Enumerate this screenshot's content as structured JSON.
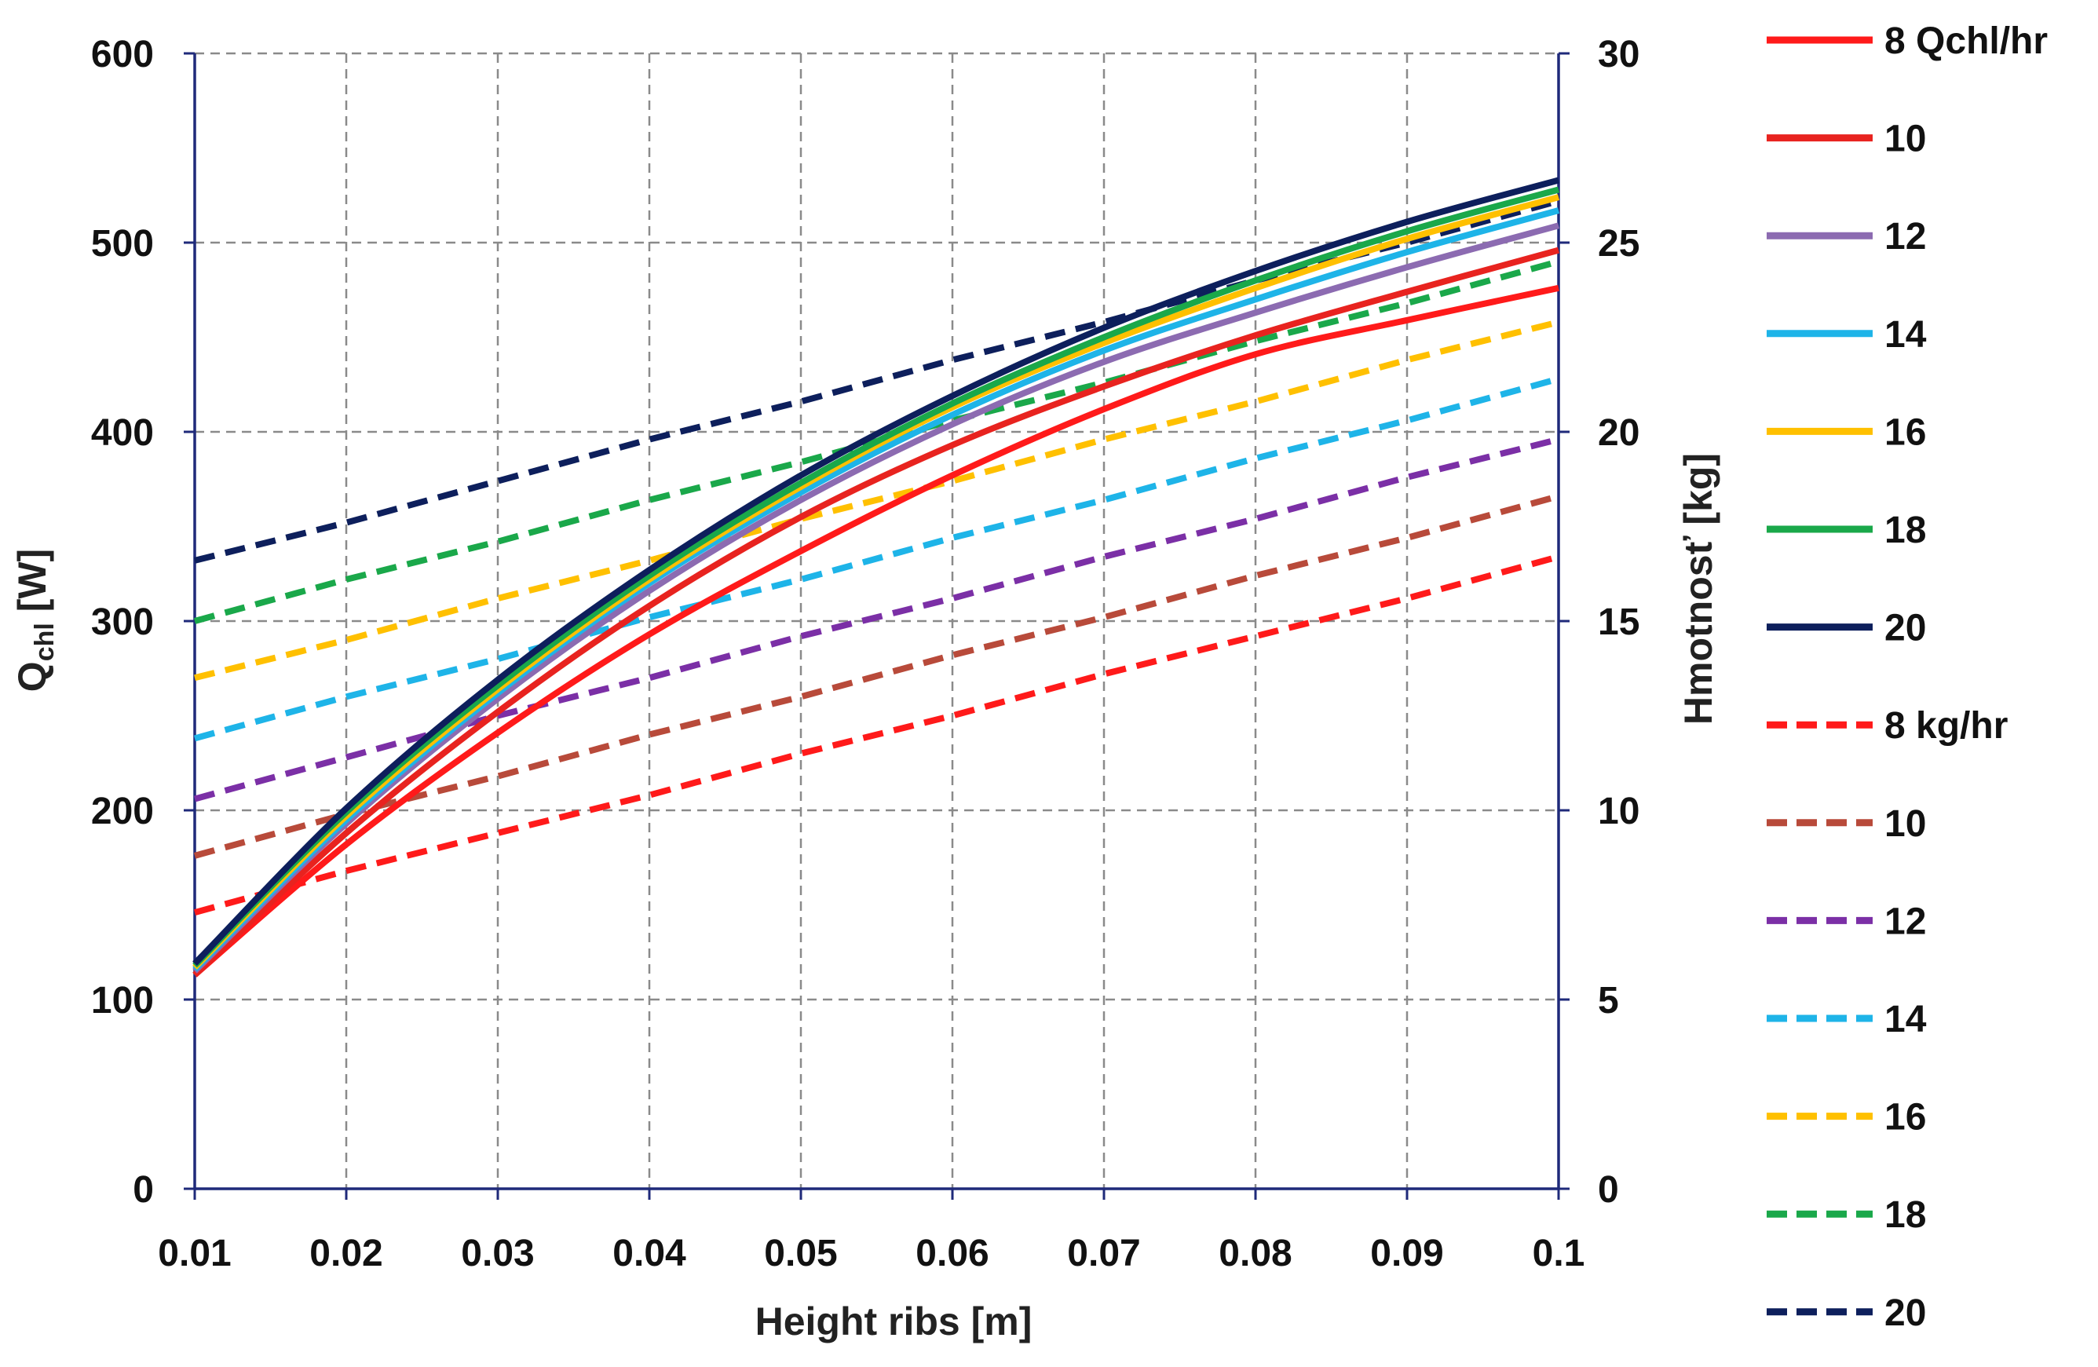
{
  "chart_data": {
    "type": "line",
    "x_axis": {
      "label": "Height ribs [m]",
      "range": [
        0.01,
        0.1
      ],
      "ticks": [
        "0.01",
        "0.02",
        "0.03",
        "0.04",
        "0.05",
        "0.06",
        "0.07",
        "0.08",
        "0.09",
        "0.1"
      ]
    },
    "y_axis_left": {
      "label": "Qchl [W]",
      "label_main": "Q",
      "label_sub": "chl",
      "label_unit": " [W]",
      "range": [
        0,
        600
      ],
      "ticks": [
        "0",
        "100",
        "200",
        "300",
        "400",
        "500",
        "600"
      ]
    },
    "y_axis_right": {
      "label": "Hmotnosť [kg]",
      "range": [
        0,
        30
      ],
      "ticks": [
        "0",
        "5",
        "10",
        "15",
        "20",
        "25",
        "30"
      ]
    },
    "grid": true,
    "legend_position": "right",
    "x": [
      0.01,
      0.02,
      0.03,
      0.04,
      0.05,
      0.06,
      0.07,
      0.08,
      0.09,
      0.1
    ],
    "series": [
      {
        "name": "8 Qchl/hr",
        "axis": "left",
        "style": "solid",
        "color": "#ff1a1a",
        "values": [
          113,
          182,
          241,
          293,
          337,
          377,
          412,
          441,
          459,
          476
        ]
      },
      {
        "name": "10",
        "axis": "left",
        "style": "solid",
        "color": "#e8231f",
        "values": [
          113,
          188,
          252,
          308,
          355,
          393,
          424,
          451,
          474,
          496
        ]
      },
      {
        "name": "12",
        "axis": "left",
        "style": "solid",
        "color": "#8c6bb1",
        "values": [
          115,
          193,
          259,
          316,
          364,
          404,
          437,
          463,
          487,
          509
        ]
      },
      {
        "name": "14",
        "axis": "left",
        "style": "solid",
        "color": "#1eb4e8",
        "values": [
          116,
          195,
          262,
          320,
          368,
          409,
          443,
          470,
          495,
          517
        ]
      },
      {
        "name": "16",
        "axis": "left",
        "style": "solid",
        "color": "#ffc000",
        "values": [
          117,
          197,
          264,
          322,
          371,
          413,
          447,
          476,
          502,
          524
        ]
      },
      {
        "name": "18",
        "axis": "left",
        "style": "solid",
        "color": "#1aa84a",
        "values": [
          118,
          199,
          266,
          324,
          373,
          415,
          450,
          480,
          506,
          528
        ]
      },
      {
        "name": "20",
        "axis": "left",
        "style": "solid",
        "color": "#0d1f5c",
        "values": [
          119,
          201,
          269,
          327,
          377,
          419,
          455,
          485,
          511,
          533
        ]
      },
      {
        "name": "8 kg/hr",
        "axis": "right",
        "style": "dashed",
        "color": "#ff1a1a",
        "values": [
          7.3,
          8.4,
          9.4,
          10.4,
          11.5,
          12.5,
          13.6,
          14.6,
          15.6,
          16.7
        ]
      },
      {
        "name": "10",
        "axis": "right",
        "style": "dashed",
        "color": "#b84a3a",
        "values": [
          8.8,
          9.9,
          10.9,
          12.0,
          13.0,
          14.1,
          15.1,
          16.2,
          17.2,
          18.3
        ]
      },
      {
        "name": "12",
        "axis": "right",
        "style": "dashed",
        "color": "#7b2fa6",
        "values": [
          10.3,
          11.4,
          12.5,
          13.5,
          14.6,
          15.6,
          16.7,
          17.7,
          18.8,
          19.8
        ]
      },
      {
        "name": "14",
        "axis": "right",
        "style": "dashed",
        "color": "#1eb4e8",
        "values": [
          11.9,
          13.0,
          14.0,
          15.1,
          16.1,
          17.2,
          18.2,
          19.3,
          20.3,
          21.4
        ]
      },
      {
        "name": "16",
        "axis": "right",
        "style": "dashed",
        "color": "#ffc000",
        "values": [
          13.5,
          14.5,
          15.6,
          16.6,
          17.7,
          18.7,
          19.8,
          20.8,
          21.9,
          22.9
        ]
      },
      {
        "name": "18",
        "axis": "right",
        "style": "dashed",
        "color": "#1aa84a",
        "values": [
          15.0,
          16.1,
          17.1,
          18.2,
          19.2,
          20.3,
          21.3,
          22.4,
          23.4,
          24.5
        ]
      },
      {
        "name": "20",
        "axis": "right",
        "style": "dashed",
        "color": "#0d1f5c",
        "values": [
          16.6,
          17.6,
          18.7,
          19.8,
          20.8,
          21.9,
          22.9,
          24.0,
          25.0,
          26.1
        ]
      }
    ]
  }
}
